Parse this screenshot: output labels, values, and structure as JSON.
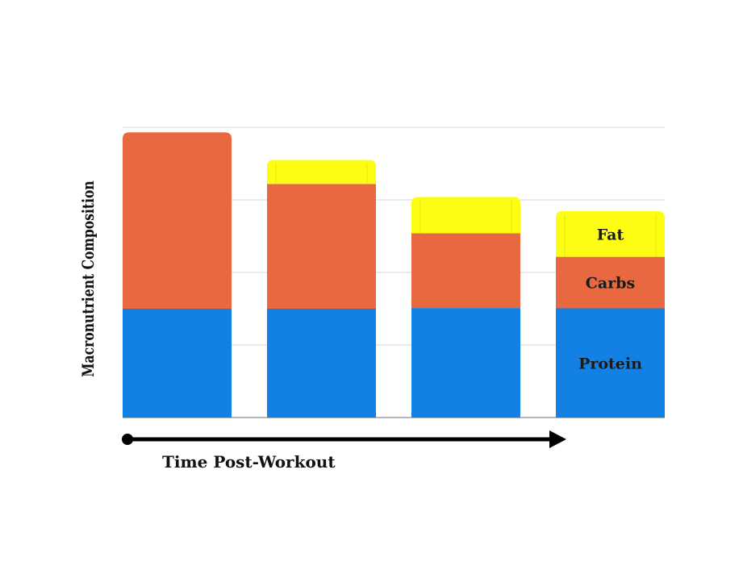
{
  "chart_data": {
    "type": "bar",
    "stacked": true,
    "categories": [
      "",
      "",
      "",
      ""
    ],
    "series": [
      {
        "name": "Protein",
        "color": "#1380e3",
        "values": [
          15,
          15,
          15.1,
          15.05
        ]
      },
      {
        "name": "Carbs",
        "color": "#e8693f",
        "values": [
          24.3,
          17.2,
          10.3,
          7.1
        ]
      },
      {
        "name": "Fat",
        "color": "#fdfd14",
        "values": [
          0,
          3.3,
          5,
          6.3
        ]
      }
    ],
    "xlabel": "Time Post-Workout",
    "ylabel": "Macronutrient Composition",
    "ylim": [
      0,
      40
    ],
    "grid": true,
    "legend": "labels inside last bar",
    "x_axis_arrow": true
  }
}
